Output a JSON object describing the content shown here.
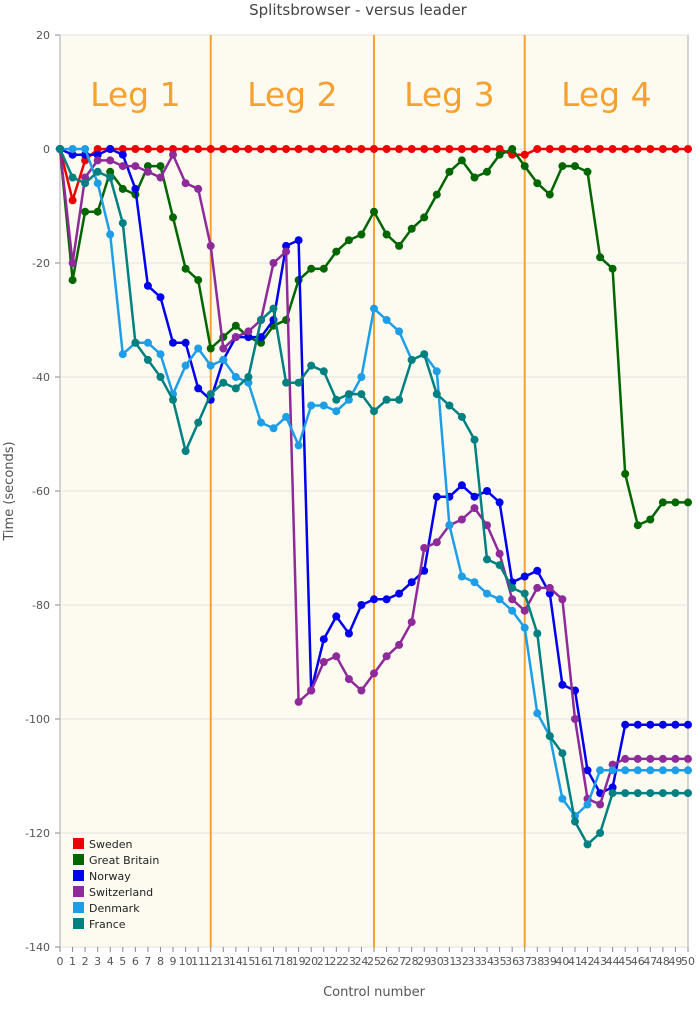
{
  "chart_data": {
    "type": "line",
    "title": "Splitsbrowser - versus leader",
    "xlabel": "Control number",
    "ylabel": "Time (seconds)",
    "xlim": [
      0,
      50
    ],
    "ylim": [
      -140,
      20
    ],
    "grid": true,
    "legend_position": "bottom-left",
    "plot_background": "#fdfbf0",
    "xticks": [
      {
        "value": 0,
        "label": "0"
      },
      {
        "value": 1,
        "label": "1"
      },
      {
        "value": 2,
        "label": "2"
      },
      {
        "value": 3,
        "label": "3"
      },
      {
        "value": 4,
        "label": "4"
      },
      {
        "value": 5,
        "label": "5"
      },
      {
        "value": 6,
        "label": "6"
      },
      {
        "value": 7,
        "label": "7"
      },
      {
        "value": 8,
        "label": "8"
      },
      {
        "value": 9,
        "label": "9"
      },
      {
        "value": 10,
        "label": "10"
      },
      {
        "value": 11,
        "label": "11"
      },
      {
        "value": 12,
        "label": "12"
      },
      {
        "value": 13,
        "label": "13"
      },
      {
        "value": 14,
        "label": "14"
      },
      {
        "value": 15,
        "label": "15"
      },
      {
        "value": 16,
        "label": "16"
      },
      {
        "value": 17,
        "label": "17"
      },
      {
        "value": 18,
        "label": "18"
      },
      {
        "value": 19,
        "label": "19"
      },
      {
        "value": 20,
        "label": "20"
      },
      {
        "value": 21,
        "label": "21"
      },
      {
        "value": 22,
        "label": "22"
      },
      {
        "value": 23,
        "label": "23"
      },
      {
        "value": 24,
        "label": "24"
      },
      {
        "value": 25,
        "label": "25"
      },
      {
        "value": 26,
        "label": "26"
      },
      {
        "value": 27,
        "label": "27"
      },
      {
        "value": 28,
        "label": "28"
      },
      {
        "value": 29,
        "label": "29"
      },
      {
        "value": 30,
        "label": "30"
      },
      {
        "value": 31,
        "label": "31"
      },
      {
        "value": 32,
        "label": "32"
      },
      {
        "value": 33,
        "label": "33"
      },
      {
        "value": 34,
        "label": "34"
      },
      {
        "value": 35,
        "label": "35"
      },
      {
        "value": 36,
        "label": "36"
      },
      {
        "value": 37,
        "label": "37"
      },
      {
        "value": 38,
        "label": "38"
      },
      {
        "value": 39,
        "label": "39"
      },
      {
        "value": 40,
        "label": "40"
      },
      {
        "value": 41,
        "label": "41"
      },
      {
        "value": 42,
        "label": "42"
      },
      {
        "value": 43,
        "label": "43"
      },
      {
        "value": 44,
        "label": "44"
      },
      {
        "value": 45,
        "label": "45"
      },
      {
        "value": 46,
        "label": "46"
      },
      {
        "value": 47,
        "label": "47"
      },
      {
        "value": 48,
        "label": "48"
      },
      {
        "value": 49,
        "label": "49"
      },
      {
        "value": 50,
        "label": "50"
      }
    ],
    "yticks": [
      20,
      0,
      -20,
      -40,
      -60,
      -80,
      -100,
      -120,
      -140
    ],
    "legs": [
      {
        "label": "Leg 1",
        "start": 0,
        "end": 12
      },
      {
        "label": "Leg 2",
        "start": 12,
        "end": 25
      },
      {
        "label": "Leg 3",
        "start": 25,
        "end": 37
      },
      {
        "label": "Leg 4",
        "start": 37,
        "end": 50
      }
    ],
    "leg_line_color": "#f5a030",
    "series": [
      {
        "name": "Sweden",
        "color": "#ee0000",
        "x": [
          0,
          1,
          2,
          3,
          4,
          5,
          6,
          7,
          8,
          9,
          10,
          11,
          12,
          13,
          14,
          15,
          16,
          17,
          18,
          19,
          20,
          21,
          22,
          23,
          24,
          25,
          26,
          27,
          28,
          29,
          30,
          31,
          32,
          33,
          34,
          35,
          36,
          37,
          38,
          39,
          40,
          41,
          42,
          43,
          44,
          45,
          46,
          47,
          48,
          49,
          50
        ],
        "values": [
          0,
          -9,
          -2,
          0,
          0,
          0,
          0,
          0,
          0,
          0,
          0,
          0,
          0,
          0,
          0,
          0,
          0,
          0,
          0,
          0,
          0,
          0,
          0,
          0,
          0,
          0,
          0,
          0,
          0,
          0,
          0,
          0,
          0,
          0,
          0,
          0,
          -1,
          -1,
          0,
          0,
          0,
          0,
          0,
          0,
          0,
          0,
          0,
          0,
          0,
          0,
          0
        ]
      },
      {
        "name": "Great Britain",
        "color": "#006600",
        "x": [
          0,
          1,
          2,
          3,
          4,
          5,
          6,
          7,
          8,
          9,
          10,
          11,
          12,
          13,
          14,
          15,
          16,
          17,
          18,
          19,
          20,
          21,
          22,
          23,
          24,
          25,
          26,
          27,
          28,
          29,
          30,
          31,
          32,
          33,
          34,
          35,
          36,
          37,
          38,
          39,
          40,
          41,
          42,
          43,
          44,
          45,
          46,
          47,
          48,
          49,
          50
        ],
        "values": [
          0,
          -23,
          -11,
          -11,
          -4,
          -7,
          -8,
          -3,
          -3,
          -12,
          -21,
          -23,
          -35,
          -33,
          -31,
          -33,
          -34,
          -31,
          -30,
          -23,
          -21,
          -21,
          -18,
          -16,
          -15,
          -11,
          -15,
          -17,
          -14,
          -12,
          -8,
          -4,
          -2,
          -5,
          -4,
          -1,
          0,
          -3,
          -6,
          -8,
          -3,
          -3,
          -4,
          -19,
          -21,
          -57,
          -66,
          -65,
          -62,
          -62,
          -62
        ]
      },
      {
        "name": "Norway",
        "color": "#0000ee",
        "x": [
          0,
          1,
          2,
          3,
          4,
          5,
          6,
          7,
          8,
          9,
          10,
          11,
          12,
          13,
          14,
          15,
          16,
          17,
          18,
          19,
          20,
          21,
          22,
          23,
          24,
          25,
          26,
          27,
          28,
          29,
          30,
          31,
          32,
          33,
          34,
          35,
          36,
          37,
          38,
          39,
          40,
          41,
          42,
          43,
          44,
          45,
          46,
          47,
          48,
          49,
          50
        ],
        "values": [
          0,
          -1,
          -1,
          -1,
          0,
          -1,
          -7,
          -24,
          -26,
          -34,
          -34,
          -42,
          -44,
          -37,
          -33,
          -33,
          -33,
          -30,
          -17,
          -16,
          -95,
          -86,
          -82,
          -85,
          -80,
          -79,
          -79,
          -78,
          -76,
          -74,
          -61,
          -61,
          -59,
          -61,
          -60,
          -62,
          -76,
          -75,
          -74,
          -78,
          -94,
          -95,
          -109,
          -113,
          -112,
          -101,
          -101,
          -101,
          -101,
          -101,
          -101
        ]
      },
      {
        "name": "Switzerland",
        "color": "#8e2a9a",
        "x": [
          0,
          1,
          2,
          3,
          4,
          5,
          6,
          7,
          8,
          9,
          10,
          11,
          12,
          13,
          14,
          15,
          16,
          17,
          18,
          19,
          20,
          21,
          22,
          23,
          24,
          25,
          26,
          27,
          28,
          29,
          30,
          31,
          32,
          33,
          34,
          35,
          36,
          37,
          38,
          39,
          40,
          41,
          42,
          43,
          44,
          45,
          46,
          47,
          48,
          49,
          50
        ],
        "values": [
          0,
          -20,
          -5,
          -2,
          -2,
          -3,
          -3,
          -4,
          -5,
          -1,
          -6,
          -7,
          -17,
          -35,
          -33,
          -32,
          -30,
          -20,
          -18,
          -97,
          -95,
          -90,
          -89,
          -93,
          -95,
          -92,
          -89,
          -87,
          -83,
          -70,
          -69,
          -66,
          -65,
          -63,
          -66,
          -71,
          -79,
          -81,
          -77,
          -77,
          -79,
          -100,
          -114,
          -115,
          -108,
          -107,
          -107,
          -107,
          -107,
          -107,
          -107
        ]
      },
      {
        "name": "Denmark",
        "color": "#1d9ee6",
        "x": [
          0,
          1,
          2,
          3,
          4,
          5,
          6,
          7,
          8,
          9,
          10,
          11,
          12,
          13,
          14,
          15,
          16,
          17,
          18,
          19,
          20,
          21,
          22,
          23,
          24,
          25,
          26,
          27,
          28,
          29,
          30,
          31,
          32,
          33,
          34,
          35,
          36,
          37,
          38,
          39,
          40,
          41,
          42,
          43,
          44,
          45,
          46,
          47,
          48,
          49,
          50
        ],
        "values": [
          0,
          0,
          0,
          -6,
          -15,
          -36,
          -34,
          -34,
          -36,
          -43,
          -38,
          -35,
          -38,
          -37,
          -40,
          -41,
          -48,
          -49,
          -47,
          -52,
          -45,
          -45,
          -46,
          -44,
          -40,
          -28,
          -30,
          -32,
          -37,
          -36,
          -39,
          -66,
          -75,
          -76,
          -78,
          -79,
          -81,
          -84,
          -99,
          -103,
          -114,
          -117,
          -115,
          -109,
          -109,
          -109,
          -109,
          -109,
          -109,
          -109,
          -109
        ]
      },
      {
        "name": "France",
        "color": "#008080",
        "x": [
          0,
          1,
          2,
          3,
          4,
          5,
          6,
          7,
          8,
          9,
          10,
          11,
          12,
          13,
          14,
          15,
          16,
          17,
          18,
          19,
          20,
          21,
          22,
          23,
          24,
          25,
          26,
          27,
          28,
          29,
          30,
          31,
          32,
          33,
          34,
          35,
          36,
          37,
          38,
          39,
          40,
          41,
          42,
          43,
          44,
          45,
          46,
          47,
          48,
          49,
          50
        ],
        "values": [
          0,
          -5,
          -6,
          -4,
          -5,
          -13,
          -34,
          -37,
          -40,
          -44,
          -53,
          -48,
          -43,
          -41,
          -42,
          -40,
          -30,
          -28,
          -41,
          -41,
          -38,
          -39,
          -44,
          -43,
          -43,
          -46,
          -44,
          -44,
          -37,
          -36,
          -43,
          -45,
          -47,
          -51,
          -72,
          -73,
          -77,
          -78,
          -85,
          -103,
          -106,
          -118,
          -122,
          -120,
          -113,
          -113,
          -113,
          -113,
          -113,
          -113,
          -113
        ]
      }
    ]
  }
}
